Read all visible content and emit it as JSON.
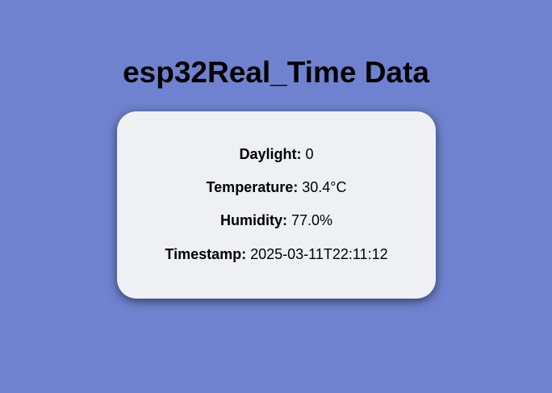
{
  "page": {
    "title": "esp32Real_Time Data",
    "background_color": "#6f82cf",
    "card_color": "#eff0f3"
  },
  "readings": {
    "daylight": {
      "label": "Daylight:",
      "value": "0"
    },
    "temperature": {
      "label": "Temperature:",
      "value": "30.4°C"
    },
    "humidity": {
      "label": "Humidity:",
      "value": "77.0%"
    },
    "timestamp": {
      "label": "Timestamp:",
      "value": "2025-03-11T22:11:12"
    }
  }
}
